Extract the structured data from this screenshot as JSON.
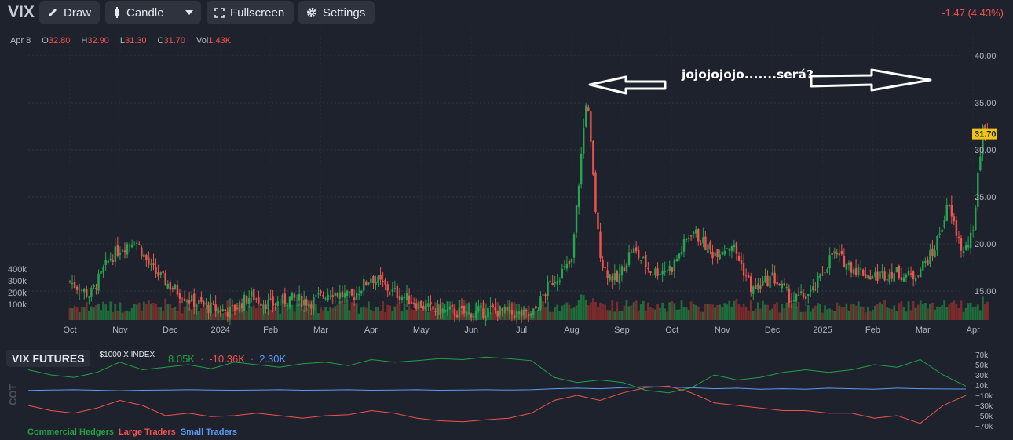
{
  "toolbar": {
    "symbol": "VIX",
    "draw_label": "Draw",
    "chart_type_label": "Candle",
    "fullscreen_label": "Fullscreen",
    "settings_label": "Settings",
    "change_text": "-1.47 (4.43%)"
  },
  "ohlc": {
    "date": "Apr 8",
    "open_key": "O",
    "open": "32.80",
    "high_key": "H",
    "high": "32.90",
    "low_key": "L",
    "low": "31.30",
    "close_key": "C",
    "close": "31.70",
    "volume_key": "Vol",
    "volume": "1.43K"
  },
  "annotation": {
    "text": "jojojojojo.......será?"
  },
  "colors": {
    "up": "#26a651",
    "down": "#ef5350",
    "background": "#1e222d",
    "last_price": "#f0c419"
  },
  "chart_data": {
    "type": "line",
    "title": "",
    "price_axis_labels": [
      "40.00",
      "35.00",
      "30.00",
      "25.00",
      "20.00",
      "15.00"
    ],
    "last_price_label": "31.70",
    "volume_axis_labels": [
      "400k",
      "300k",
      "200k",
      "100k"
    ],
    "x_tick_labels": [
      "Oct",
      "Nov",
      "Dec",
      "2024",
      "Feb",
      "Mar",
      "Apr",
      "May",
      "Jun",
      "Jul",
      "Aug",
      "Sep",
      "Oct",
      "Nov",
      "Dec",
      "2025",
      "Feb",
      "Mar",
      "Apr"
    ],
    "ylim": [
      12.5,
      40.0
    ],
    "series": [
      {
        "name": "VIX",
        "x_month_index": [
          0,
          0.4,
          0.8,
          1.0,
          1.3,
          1.6,
          2.0,
          2.4,
          2.8,
          3.2,
          3.6,
          4.0,
          4.4,
          4.8,
          5.2,
          5.6,
          6.0,
          6.4,
          6.8,
          7.2,
          7.6,
          8.0,
          8.4,
          8.8,
          9.2,
          9.6,
          10.0,
          10.3,
          10.5,
          10.6,
          10.7,
          10.9,
          11.2,
          11.6,
          12.0,
          12.4,
          12.8,
          13.2,
          13.6,
          14.0,
          14.4,
          14.8,
          15.2,
          15.6,
          16.0,
          16.4,
          16.8,
          17.2,
          17.5,
          17.8,
          18.0,
          18.1,
          18.2,
          18.3
        ],
        "close": [
          16.0,
          14.5,
          18.5,
          19.5,
          20.5,
          17.5,
          15.5,
          14.0,
          13.2,
          12.8,
          14.5,
          13.5,
          14.2,
          13.8,
          15.0,
          14.2,
          16.5,
          15.0,
          14.0,
          13.0,
          12.8,
          12.5,
          13.0,
          12.6,
          12.3,
          16.0,
          18.0,
          36.0,
          22.0,
          18.0,
          17.0,
          16.0,
          19.5,
          17.0,
          17.5,
          21.5,
          19.0,
          20.0,
          15.0,
          16.5,
          14.0,
          14.8,
          19.0,
          17.5,
          16.5,
          17.0,
          16.5,
          19.0,
          24.0,
          19.0,
          21.0,
          28.0,
          32.5,
          31.7
        ]
      }
    ],
    "cot_panel": {
      "title": "VIX FUTURES",
      "subtitle": "$1000 X INDEX",
      "side_label": "COT",
      "value_labels": [
        "8.05K",
        "-10.36K",
        "2.30K"
      ],
      "axis_labels": [
        "70k",
        "50k",
        "30k",
        "10k",
        "−10k",
        "−30k",
        "−50k",
        "−70k"
      ],
      "ylim": [
        -70000,
        70000
      ],
      "series": [
        {
          "name": "Commercial Hedgers",
          "color": "#22a047",
          "values": [
            40000,
            30000,
            25000,
            35000,
            55000,
            40000,
            45000,
            50000,
            42000,
            55000,
            50000,
            45000,
            52000,
            55000,
            48000,
            60000,
            55000,
            58000,
            62000,
            60000,
            65000,
            62000,
            58000,
            25000,
            15000,
            20000,
            15000,
            0,
            -5000,
            5000,
            30000,
            20000,
            25000,
            35000,
            40000,
            35000,
            40000,
            50000,
            45000,
            60000,
            30000,
            8050
          ]
        },
        {
          "name": "Large Traders",
          "color": "#ef5350",
          "values": [
            -30000,
            -40000,
            -45000,
            -35000,
            -20000,
            -30000,
            -50000,
            -45000,
            -52000,
            -50000,
            -45000,
            -50000,
            -55000,
            -50000,
            -48000,
            -40000,
            -45000,
            -55000,
            -60000,
            -62000,
            -58000,
            -55000,
            -45000,
            -20000,
            -10000,
            -20000,
            -5000,
            5000,
            8000,
            -5000,
            -25000,
            -30000,
            -35000,
            -40000,
            -40000,
            -45000,
            -45000,
            -55000,
            -50000,
            -65000,
            -30000,
            -10360
          ]
        },
        {
          "name": "Small Traders",
          "color": "#5b9cf6",
          "values": [
            -500,
            500,
            1000,
            0,
            -1000,
            0,
            500,
            1000,
            500,
            0,
            500,
            1000,
            0,
            500,
            1000,
            0,
            500,
            1000,
            0,
            500,
            1000,
            500,
            1000,
            3000,
            4000,
            3000,
            5000,
            7000,
            6000,
            5000,
            3000,
            4000,
            2000,
            3000,
            2000,
            4000,
            3000,
            2000,
            4000,
            3000,
            2500,
            2300
          ]
        }
      ]
    }
  }
}
